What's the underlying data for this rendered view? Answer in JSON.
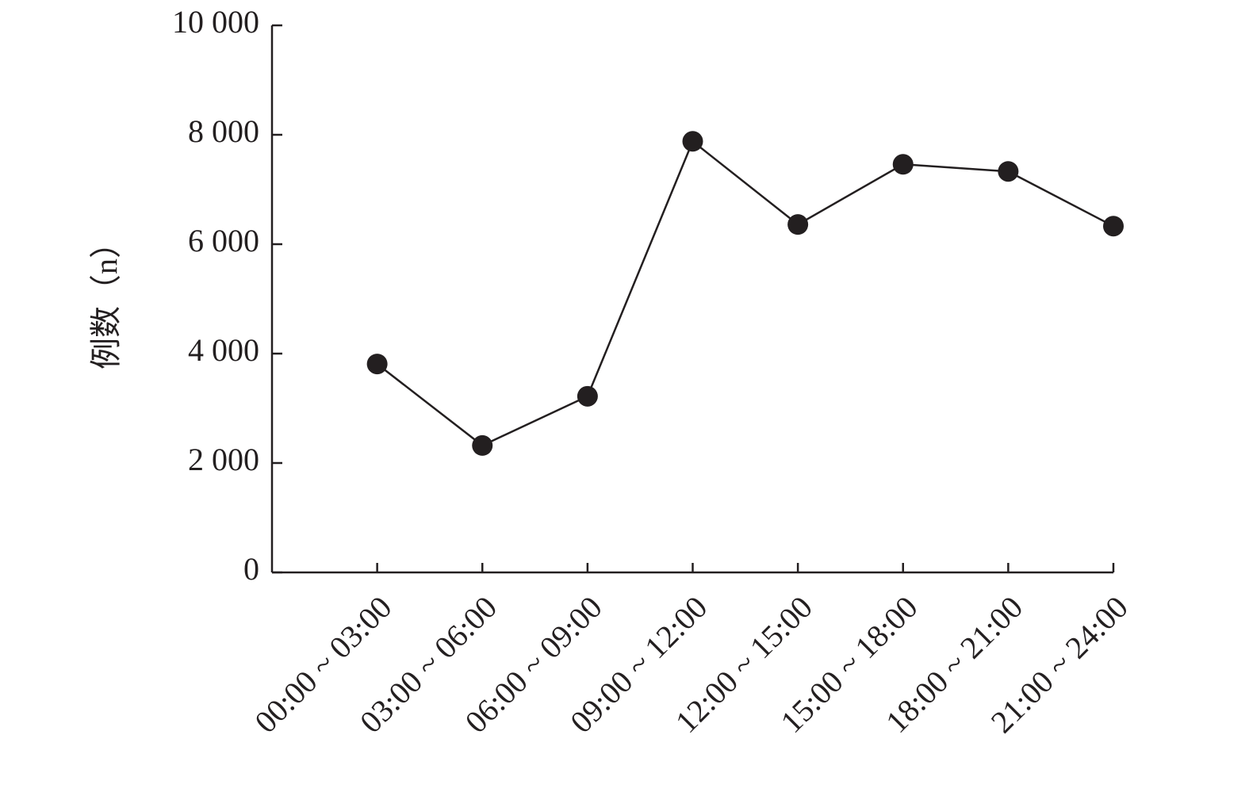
{
  "chart_data": {
    "type": "line",
    "ylabel": "例数（n）",
    "categories": [
      "00:00 ~ 03:00",
      "03:00 ~ 06:00",
      "06:00 ~ 09:00",
      "09:00 ~ 12:00",
      "12:00 ~ 15:00",
      "15:00 ~ 18:00",
      "18:00 ~ 21:00",
      "21:00 ~ 24:00"
    ],
    "values": [
      3810,
      2320,
      3220,
      7880,
      6360,
      7460,
      7330,
      6330
    ],
    "color": "#231f20",
    "ylim": [
      0,
      10000
    ],
    "yticks": [
      0,
      {
        "value": 2000,
        "label": "2 000"
      },
      {
        "value": 4000,
        "label": "4 000"
      },
      {
        "value": 6000,
        "label": "6 000"
      },
      {
        "value": 8000,
        "label": "8 000"
      },
      {
        "value": 10000,
        "label": "10 000"
      }
    ]
  }
}
